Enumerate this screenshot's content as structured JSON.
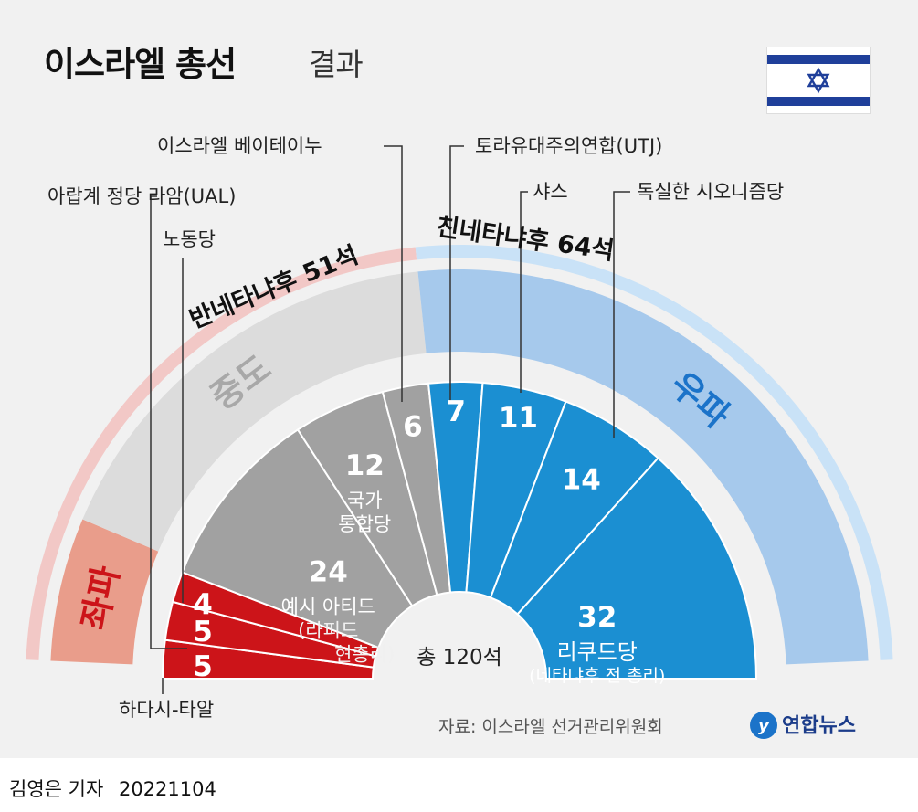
{
  "title": "이스라엘 총선",
  "title_suffix": "결과",
  "byline": "김영은 기자",
  "date": "20221104",
  "source": "자료: 이스라엘 선거관리위원회",
  "logo_text": "연합뉴스",
  "icons": {
    "flag": "israel-flag-icon",
    "logo": "yonhap-logo-icon"
  },
  "colors": {
    "left": "#cc1419",
    "center": "#a1a1a1",
    "right": "#1b8fd2",
    "anti_bloc": "#f2c8c6",
    "pro_bloc": "#c9e2f7"
  },
  "chart_data": {
    "type": "pie",
    "subtype": "parliament-semicircle",
    "total_label": "총 120석",
    "total": 120,
    "blocs": [
      {
        "label": "반네타냐후",
        "seats_label": "51석",
        "seats": 51
      },
      {
        "label": "친네타냐후",
        "seats_label": "64석",
        "seats": 64
      }
    ],
    "groups": [
      {
        "label": "좌파",
        "seats": 14
      },
      {
        "label": "중도",
        "seats": 42
      },
      {
        "label": "우파",
        "seats": 64
      }
    ],
    "parties": [
      {
        "seats": 5,
        "value": "5",
        "group": "좌파",
        "label": "하다시-타알"
      },
      {
        "seats": 5,
        "value": "5",
        "group": "좌파",
        "label": "아랍계 정당 라암(UAL)"
      },
      {
        "seats": 4,
        "value": "4",
        "group": "좌파",
        "label": "노동당"
      },
      {
        "seats": 24,
        "value": "24",
        "group": "중도",
        "inner": [
          "예시 아티드",
          "(라피드",
          "현총리)"
        ]
      },
      {
        "seats": 12,
        "value": "12",
        "group": "중도",
        "inner": [
          "국가",
          "통합당"
        ]
      },
      {
        "seats": 6,
        "value": "6",
        "group": "중도",
        "label": "이스라엘 베이테이누"
      },
      {
        "seats": 7,
        "value": "7",
        "group": "우파",
        "label": "토라유대주의연합(UTJ)"
      },
      {
        "seats": 11,
        "value": "11",
        "group": "우파",
        "label": "샤스"
      },
      {
        "seats": 14,
        "value": "14",
        "group": "우파",
        "label": "독실한 시오니즘당"
      },
      {
        "seats": 32,
        "value": "32",
        "group": "우파",
        "inner": [
          "리쿠드당",
          "(네타냐후 전 총리)"
        ]
      }
    ]
  }
}
